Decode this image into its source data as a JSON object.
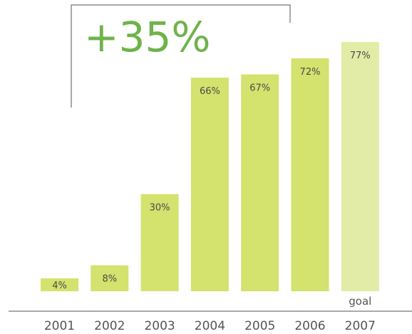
{
  "chart_data": {
    "type": "bar",
    "categories": [
      "2001",
      "2002",
      "2003",
      "2004",
      "2005",
      "2006",
      "2007"
    ],
    "values": [
      4,
      8,
      30,
      66,
      67,
      72,
      77
    ],
    "data_labels": [
      "4%",
      "8%",
      "30%",
      "66%",
      "67%",
      "72%",
      "77%"
    ],
    "bar_notes": [
      "",
      "",
      "",
      "",
      "",
      "",
      "goal"
    ],
    "ylim": [
      0,
      85
    ],
    "grid": false,
    "callout": "+35%",
    "colors": {
      "bar": "#d4e26e",
      "goal_bar": "#e3eca6",
      "callout": "#6fb34a",
      "axis": "#555555"
    }
  }
}
